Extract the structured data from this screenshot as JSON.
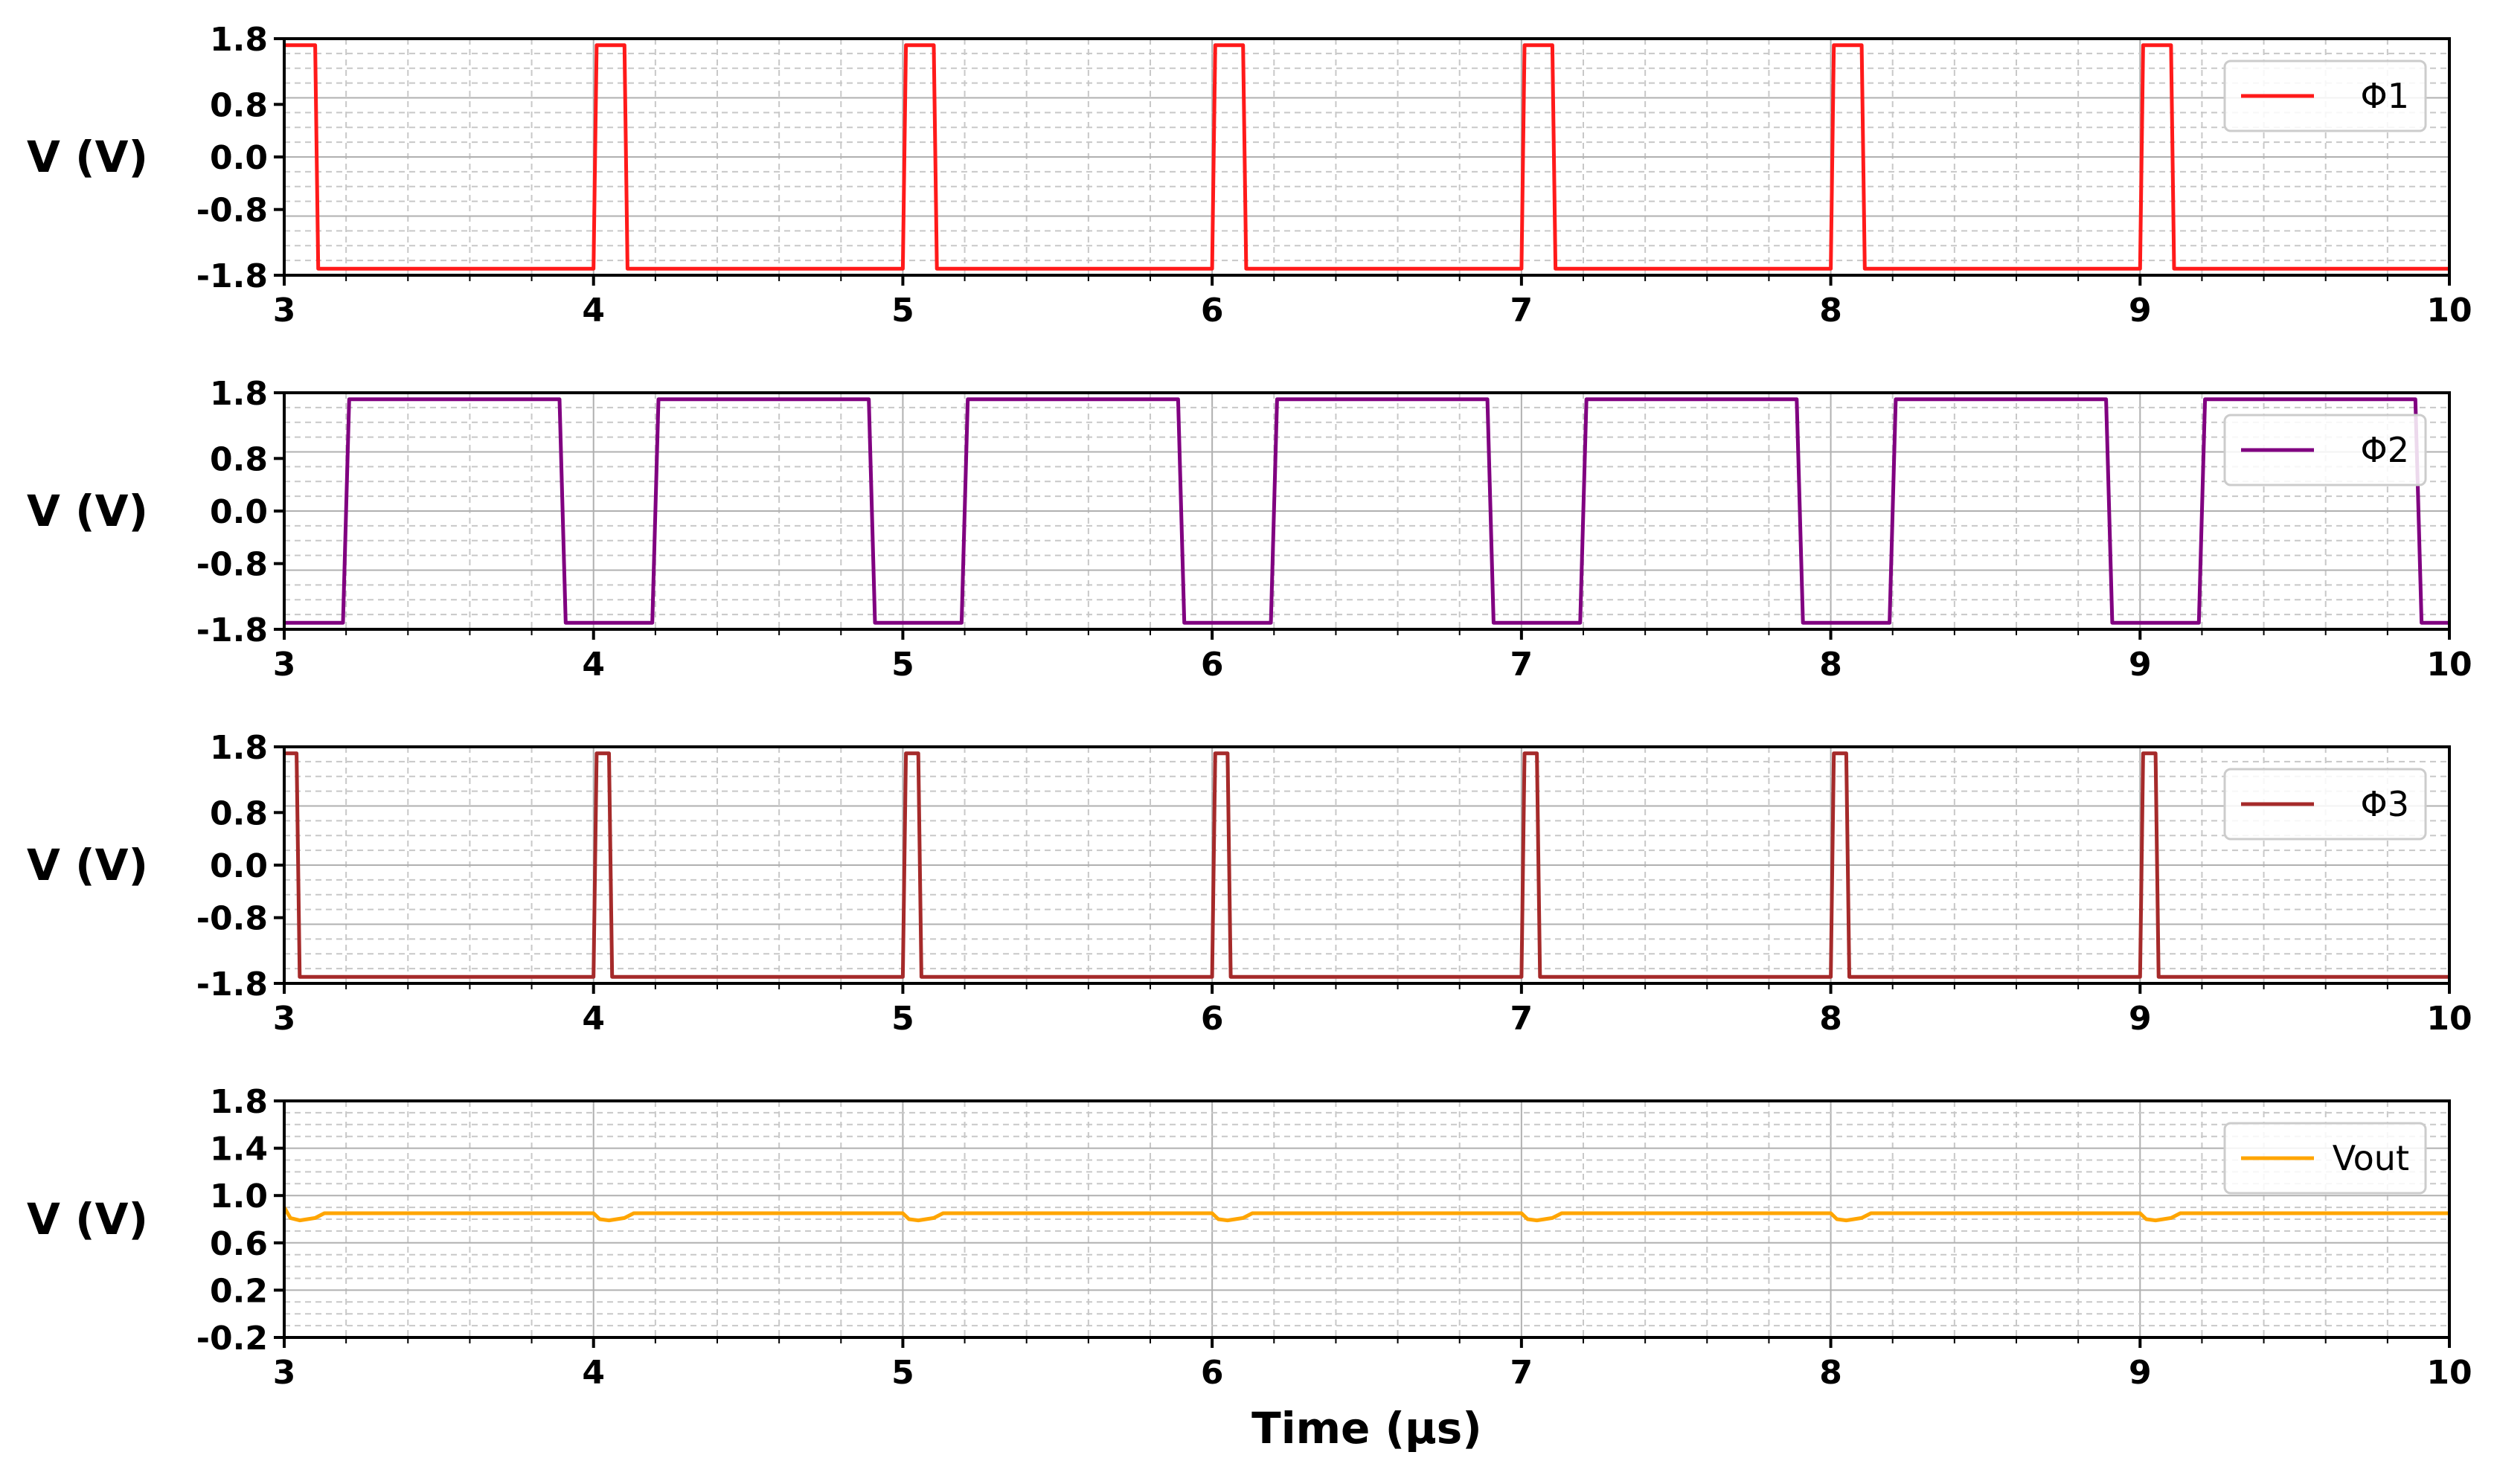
{
  "chart_data": [
    {
      "type": "line",
      "ylabel": "V (V)",
      "xlabel": "",
      "xlim": [
        3,
        10
      ],
      "ylim": [
        -1.8,
        1.8
      ],
      "xticks": [
        "3",
        "4",
        "5",
        "6",
        "7",
        "8",
        "9",
        "10"
      ],
      "yticks": [
        "1.8",
        "0.8",
        "0.0",
        "-0.8",
        "-1.8"
      ],
      "ytick_values": [
        1.8,
        0.8,
        0.0,
        -0.8,
        -1.8
      ],
      "grid": true,
      "legend_position": "top-right",
      "series": [
        {
          "name": "Φ1",
          "color": "#ff1a1a",
          "x": [
            3.0,
            3.1,
            3.11,
            4.0,
            4.01,
            4.1,
            4.11,
            5.0,
            5.01,
            5.1,
            5.11,
            6.0,
            6.01,
            6.1,
            6.11,
            7.0,
            7.01,
            7.1,
            7.11,
            8.0,
            8.01,
            8.1,
            8.11,
            9.0,
            9.01,
            9.1,
            9.11,
            10.0
          ],
          "y": [
            1.7,
            1.7,
            -1.7,
            -1.7,
            1.7,
            1.7,
            -1.7,
            -1.7,
            1.7,
            1.7,
            -1.7,
            -1.7,
            1.7,
            1.7,
            -1.7,
            -1.7,
            1.7,
            1.7,
            -1.7,
            -1.7,
            1.7,
            1.7,
            -1.7,
            -1.7,
            1.7,
            1.7,
            -1.7,
            -1.7
          ]
        }
      ]
    },
    {
      "type": "line",
      "ylabel": "V (V)",
      "xlabel": "",
      "xlim": [
        3,
        10
      ],
      "ylim": [
        -1.8,
        1.8
      ],
      "xticks": [
        "3",
        "4",
        "5",
        "6",
        "7",
        "8",
        "9",
        "10"
      ],
      "yticks": [
        "1.8",
        "0.8",
        "0.0",
        "-0.8",
        "-1.8"
      ],
      "ytick_values": [
        1.8,
        0.8,
        0.0,
        -0.8,
        -1.8
      ],
      "grid": true,
      "legend_position": "top-right",
      "series": [
        {
          "name": "Φ2",
          "color": "#800080",
          "x": [
            3.0,
            3.19,
            3.21,
            3.89,
            3.91,
            4.19,
            4.21,
            4.89,
            4.91,
            5.19,
            5.21,
            5.89,
            5.91,
            6.19,
            6.21,
            6.89,
            6.91,
            7.19,
            7.21,
            7.89,
            7.91,
            8.19,
            8.21,
            8.89,
            8.91,
            9.19,
            9.21,
            9.89,
            9.91,
            10.0
          ],
          "y": [
            -1.7,
            -1.7,
            1.7,
            1.7,
            -1.7,
            -1.7,
            1.7,
            1.7,
            -1.7,
            -1.7,
            1.7,
            1.7,
            -1.7,
            -1.7,
            1.7,
            1.7,
            -1.7,
            -1.7,
            1.7,
            1.7,
            -1.7,
            -1.7,
            1.7,
            1.7,
            -1.7,
            -1.7,
            1.7,
            1.7,
            -1.7,
            -1.7
          ]
        }
      ]
    },
    {
      "type": "line",
      "ylabel": "V (V)",
      "xlabel": "",
      "xlim": [
        3,
        10
      ],
      "ylim": [
        -1.8,
        1.8
      ],
      "xticks": [
        "3",
        "4",
        "5",
        "6",
        "7",
        "8",
        "9",
        "10"
      ],
      "yticks": [
        "1.8",
        "0.8",
        "0.0",
        "-0.8",
        "-1.8"
      ],
      "ytick_values": [
        1.8,
        0.8,
        0.0,
        -0.8,
        -1.8
      ],
      "grid": true,
      "legend_position": "top-right",
      "series": [
        {
          "name": "Φ3",
          "color": "#a52a2a",
          "x": [
            3.0,
            3.04,
            3.05,
            4.0,
            4.01,
            4.05,
            4.06,
            5.0,
            5.01,
            5.05,
            5.06,
            6.0,
            6.01,
            6.05,
            6.06,
            7.0,
            7.01,
            7.05,
            7.06,
            8.0,
            8.01,
            8.05,
            8.06,
            9.0,
            9.01,
            9.05,
            9.06,
            10.0
          ],
          "y": [
            1.7,
            1.7,
            -1.7,
            -1.7,
            1.7,
            1.7,
            -1.7,
            -1.7,
            1.7,
            1.7,
            -1.7,
            -1.7,
            1.7,
            1.7,
            -1.7,
            -1.7,
            1.7,
            1.7,
            -1.7,
            -1.7,
            1.7,
            1.7,
            -1.7,
            -1.7,
            1.7,
            1.7,
            -1.7,
            -1.7
          ]
        }
      ]
    },
    {
      "type": "line",
      "ylabel": "V (V)",
      "xlabel": "Time (μs)",
      "xlim": [
        3,
        10
      ],
      "ylim": [
        -0.2,
        1.8
      ],
      "xticks": [
        "3",
        "4",
        "5",
        "6",
        "7",
        "8",
        "9",
        "10"
      ],
      "yticks": [
        "1.8",
        "1.4",
        "1.0",
        "0.6",
        "0.2",
        "-0.2"
      ],
      "ytick_values": [
        1.8,
        1.4,
        1.0,
        0.6,
        0.2,
        -0.2
      ],
      "grid": true,
      "legend_position": "top-right",
      "series": [
        {
          "name": "Vout",
          "color": "#ffa500",
          "x": [
            3.0,
            3.02,
            3.05,
            3.1,
            3.13,
            3.2,
            4.0,
            4.02,
            4.05,
            4.1,
            4.13,
            4.2,
            5.0,
            5.02,
            5.05,
            5.1,
            5.13,
            5.2,
            6.0,
            6.02,
            6.05,
            6.1,
            6.13,
            6.2,
            7.0,
            7.02,
            7.05,
            7.1,
            7.13,
            7.2,
            8.0,
            8.02,
            8.05,
            8.1,
            8.13,
            8.2,
            9.0,
            9.02,
            9.05,
            9.1,
            9.13,
            9.2,
            10.0
          ],
          "y": [
            0.9,
            0.81,
            0.79,
            0.81,
            0.85,
            0.85,
            0.85,
            0.8,
            0.79,
            0.81,
            0.85,
            0.85,
            0.85,
            0.8,
            0.79,
            0.81,
            0.85,
            0.85,
            0.85,
            0.8,
            0.79,
            0.81,
            0.85,
            0.85,
            0.85,
            0.8,
            0.79,
            0.81,
            0.85,
            0.85,
            0.85,
            0.8,
            0.79,
            0.81,
            0.85,
            0.85,
            0.85,
            0.8,
            0.79,
            0.81,
            0.85,
            0.85,
            0.85
          ]
        }
      ]
    }
  ]
}
